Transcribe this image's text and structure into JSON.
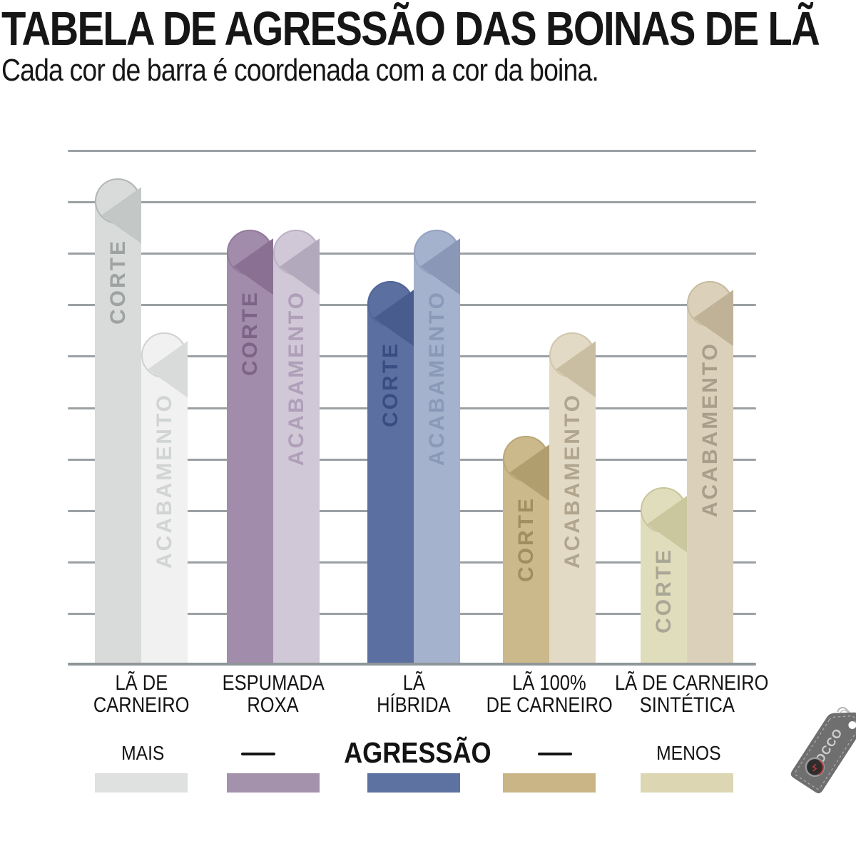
{
  "header": {
    "title": "TABELA DE AGRESSÃO DAS BOINAS DE LÃ",
    "subtitle": "Cada cor de barra é coordenada com a cor da boina."
  },
  "chart_data": {
    "type": "bar",
    "title": "TABELA DE AGRESSÃO DAS BOINAS DE LÃ",
    "ylabel": "AGRESSÃO",
    "ylim": [
      0,
      10
    ],
    "gridline_count": 11,
    "grid": true,
    "legend_position": "bottom",
    "series": [
      {
        "name": "CORTE",
        "values": [
          9,
          8,
          7,
          4,
          3
        ]
      },
      {
        "name": "ACABAMENTO",
        "values": [
          6,
          8,
          8,
          6,
          7
        ]
      }
    ],
    "categories": [
      {
        "label_lines": [
          "LÃ DE",
          "CARNEIRO"
        ],
        "styles": {
          "CORTE": {
            "fill": "#d9dbda",
            "fold": "#c3c7c6",
            "ring": "#b2b6b5",
            "text": "#9ea3a2"
          },
          "ACABAMENTO": {
            "fill": "#f0f1f0",
            "fold": "#d8dbda",
            "ring": "#ced2d1",
            "text": "#d0d4d3"
          }
        }
      },
      {
        "label_lines": [
          "ESPUMADA",
          "ROXA"
        ],
        "styles": {
          "CORTE": {
            "fill": "#a28cab",
            "fold": "#8a7093",
            "ring": "#937a9c",
            "text": "#7c6488"
          },
          "ACABAMENTO": {
            "fill": "#d0c8d6",
            "fold": "#b3a9bd",
            "ring": "#bcb1c5",
            "text": "#af9fb9"
          }
        }
      },
      {
        "label_lines": [
          "LÃ",
          "HÍBRIDA"
        ],
        "styles": {
          "CORTE": {
            "fill": "#5b70a0",
            "fold": "#495c8e",
            "ring": "#51669a",
            "text": "#3a4d82"
          },
          "ACABAMENTO": {
            "fill": "#a5b2cd",
            "fold": "#8b97b6",
            "ring": "#95a2c0",
            "text": "#8b99b8"
          }
        }
      },
      {
        "label_lines": [
          "LÃ 100%",
          "DE CARNEIRO"
        ],
        "styles": {
          "CORTE": {
            "fill": "#cbb98b",
            "fold": "#b19e6e",
            "ring": "#b9a778",
            "text": "#a18e5f"
          },
          "ACABAMENTO": {
            "fill": "#e3dac5",
            "fold": "#c9bda2",
            "ring": "#d1c6ae",
            "text": "#b1a58e"
          }
        }
      },
      {
        "label_lines": [
          "LÃ DE CARNEIRO",
          "SINTÉTICA"
        ],
        "styles": {
          "CORTE": {
            "fill": "#e0ddbd",
            "fold": "#cac69e",
            "ring": "#c9c59d",
            "text": "#a9a795"
          },
          "ACABAMENTO": {
            "fill": "#dbd1bb",
            "fold": "#bfb297",
            "ring": "#c7bb9f",
            "text": "#a89e8a"
          }
        }
      }
    ]
  },
  "legend": {
    "more_label": "MAIS",
    "axis_label": "AGRESSÃO",
    "less_label": "MENOS",
    "swatches": [
      "#dfe1e0",
      "#a491ac",
      "#5d72a1",
      "#c9b586",
      "#ddd6b2"
    ]
  },
  "logo": {
    "brand": "FOCCO"
  }
}
